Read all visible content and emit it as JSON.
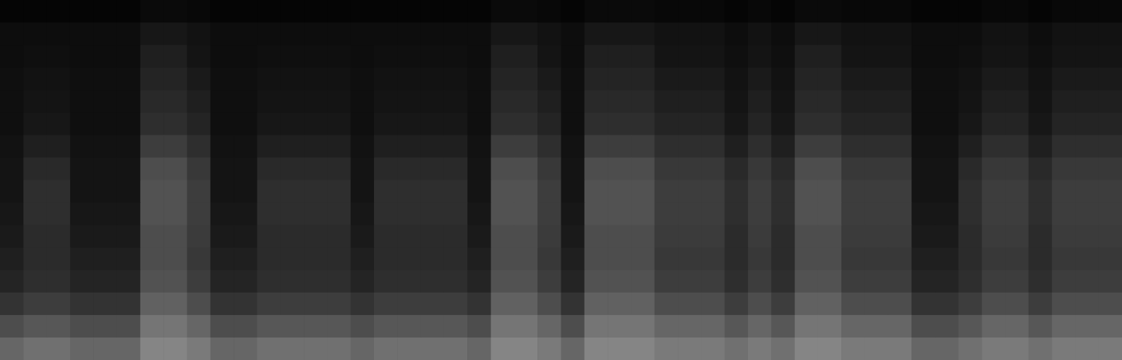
{
  "chart_data": {
    "type": "heatmap",
    "tick_labels": false,
    "color": "#ffffff",
    "zlim": [
      0,
      1
    ],
    "cells": [
      [
        0.02,
        0.02,
        0.02,
        0.02,
        0.02,
        0.02,
        0.04,
        0.04,
        0.03,
        0.02,
        0.02,
        0.02,
        0.02,
        0.02,
        0.02,
        0.02,
        0.02,
        0.02,
        0.02,
        0.02,
        0.02,
        0.04,
        0.04,
        0.03,
        0.02,
        0.04,
        0.04,
        0.04,
        0.03,
        0.03,
        0.03,
        0.02,
        0.03,
        0.02,
        0.04,
        0.04,
        0.03,
        0.03,
        0.03,
        0.02,
        0.02,
        0.02,
        0.03,
        0.03,
        0.02,
        0.03,
        0.03,
        0.03
      ],
      [
        0.05,
        0.05,
        0.05,
        0.05,
        0.05,
        0.05,
        0.09,
        0.09,
        0.07,
        0.05,
        0.05,
        0.05,
        0.05,
        0.05,
        0.05,
        0.05,
        0.05,
        0.05,
        0.05,
        0.05,
        0.05,
        0.09,
        0.09,
        0.07,
        0.05,
        0.09,
        0.09,
        0.09,
        0.07,
        0.07,
        0.07,
        0.05,
        0.07,
        0.05,
        0.09,
        0.09,
        0.07,
        0.07,
        0.07,
        0.05,
        0.05,
        0.05,
        0.07,
        0.07,
        0.05,
        0.07,
        0.07,
        0.07
      ],
      [
        0.05,
        0.06,
        0.06,
        0.05,
        0.05,
        0.05,
        0.12,
        0.12,
        0.08,
        0.05,
        0.05,
        0.06,
        0.06,
        0.06,
        0.06,
        0.05,
        0.06,
        0.06,
        0.06,
        0.06,
        0.05,
        0.12,
        0.12,
        0.08,
        0.05,
        0.12,
        0.12,
        0.12,
        0.08,
        0.08,
        0.08,
        0.06,
        0.08,
        0.06,
        0.12,
        0.12,
        0.08,
        0.08,
        0.08,
        0.05,
        0.05,
        0.06,
        0.08,
        0.08,
        0.06,
        0.08,
        0.08,
        0.08
      ],
      [
        0.06,
        0.07,
        0.07,
        0.06,
        0.06,
        0.06,
        0.14,
        0.14,
        0.1,
        0.06,
        0.06,
        0.07,
        0.07,
        0.07,
        0.07,
        0.06,
        0.07,
        0.07,
        0.07,
        0.07,
        0.06,
        0.14,
        0.14,
        0.1,
        0.06,
        0.14,
        0.14,
        0.14,
        0.1,
        0.1,
        0.1,
        0.07,
        0.1,
        0.07,
        0.14,
        0.14,
        0.1,
        0.1,
        0.1,
        0.06,
        0.06,
        0.07,
        0.1,
        0.1,
        0.07,
        0.1,
        0.1,
        0.1
      ],
      [
        0.06,
        0.08,
        0.08,
        0.06,
        0.06,
        0.06,
        0.16,
        0.16,
        0.12,
        0.06,
        0.06,
        0.08,
        0.08,
        0.08,
        0.08,
        0.06,
        0.08,
        0.08,
        0.08,
        0.08,
        0.06,
        0.16,
        0.16,
        0.12,
        0.06,
        0.16,
        0.16,
        0.16,
        0.12,
        0.12,
        0.12,
        0.08,
        0.12,
        0.08,
        0.16,
        0.16,
        0.12,
        0.12,
        0.12,
        0.06,
        0.06,
        0.08,
        0.12,
        0.12,
        0.08,
        0.12,
        0.12,
        0.12
      ],
      [
        0.06,
        0.09,
        0.09,
        0.06,
        0.06,
        0.06,
        0.18,
        0.18,
        0.14,
        0.06,
        0.06,
        0.09,
        0.09,
        0.09,
        0.09,
        0.06,
        0.09,
        0.09,
        0.09,
        0.09,
        0.06,
        0.18,
        0.18,
        0.14,
        0.06,
        0.18,
        0.18,
        0.18,
        0.14,
        0.14,
        0.14,
        0.09,
        0.14,
        0.09,
        0.18,
        0.18,
        0.14,
        0.14,
        0.14,
        0.06,
        0.06,
        0.09,
        0.14,
        0.14,
        0.09,
        0.14,
        0.14,
        0.14
      ],
      [
        0.07,
        0.12,
        0.12,
        0.07,
        0.07,
        0.07,
        0.24,
        0.24,
        0.18,
        0.07,
        0.07,
        0.12,
        0.12,
        0.12,
        0.12,
        0.07,
        0.12,
        0.12,
        0.12,
        0.12,
        0.07,
        0.24,
        0.24,
        0.18,
        0.07,
        0.24,
        0.24,
        0.24,
        0.18,
        0.18,
        0.18,
        0.12,
        0.18,
        0.12,
        0.24,
        0.24,
        0.18,
        0.18,
        0.18,
        0.07,
        0.07,
        0.12,
        0.18,
        0.18,
        0.12,
        0.18,
        0.18,
        0.18
      ],
      [
        0.08,
        0.16,
        0.16,
        0.08,
        0.08,
        0.08,
        0.3,
        0.3,
        0.22,
        0.08,
        0.08,
        0.16,
        0.16,
        0.16,
        0.16,
        0.08,
        0.16,
        0.16,
        0.16,
        0.16,
        0.08,
        0.3,
        0.3,
        0.22,
        0.08,
        0.3,
        0.3,
        0.3,
        0.22,
        0.22,
        0.22,
        0.16,
        0.22,
        0.16,
        0.3,
        0.3,
        0.22,
        0.22,
        0.22,
        0.08,
        0.08,
        0.16,
        0.22,
        0.22,
        0.16,
        0.22,
        0.22,
        0.22
      ],
      [
        0.08,
        0.18,
        0.18,
        0.08,
        0.08,
        0.08,
        0.32,
        0.32,
        0.24,
        0.08,
        0.08,
        0.18,
        0.18,
        0.18,
        0.18,
        0.08,
        0.18,
        0.18,
        0.18,
        0.18,
        0.08,
        0.32,
        0.32,
        0.24,
        0.08,
        0.32,
        0.32,
        0.32,
        0.24,
        0.24,
        0.24,
        0.18,
        0.24,
        0.18,
        0.32,
        0.32,
        0.24,
        0.24,
        0.24,
        0.08,
        0.08,
        0.18,
        0.24,
        0.24,
        0.18,
        0.24,
        0.24,
        0.24
      ],
      [
        0.09,
        0.18,
        0.18,
        0.09,
        0.09,
        0.09,
        0.32,
        0.32,
        0.24,
        0.09,
        0.09,
        0.18,
        0.18,
        0.18,
        0.18,
        0.09,
        0.18,
        0.18,
        0.18,
        0.18,
        0.09,
        0.32,
        0.32,
        0.24,
        0.09,
        0.32,
        0.32,
        0.32,
        0.24,
        0.24,
        0.24,
        0.18,
        0.24,
        0.18,
        0.32,
        0.32,
        0.24,
        0.24,
        0.24,
        0.09,
        0.09,
        0.18,
        0.24,
        0.24,
        0.18,
        0.24,
        0.24,
        0.24
      ],
      [
        0.1,
        0.17,
        0.17,
        0.1,
        0.1,
        0.1,
        0.3,
        0.3,
        0.23,
        0.1,
        0.1,
        0.17,
        0.17,
        0.17,
        0.17,
        0.1,
        0.17,
        0.17,
        0.17,
        0.17,
        0.1,
        0.3,
        0.3,
        0.23,
        0.1,
        0.3,
        0.3,
        0.3,
        0.23,
        0.23,
        0.23,
        0.17,
        0.23,
        0.17,
        0.3,
        0.3,
        0.23,
        0.23,
        0.23,
        0.1,
        0.1,
        0.17,
        0.23,
        0.23,
        0.17,
        0.23,
        0.23,
        0.23
      ],
      [
        0.12,
        0.17,
        0.17,
        0.12,
        0.12,
        0.12,
        0.3,
        0.3,
        0.22,
        0.12,
        0.12,
        0.17,
        0.17,
        0.17,
        0.17,
        0.12,
        0.17,
        0.17,
        0.17,
        0.17,
        0.12,
        0.3,
        0.3,
        0.22,
        0.12,
        0.3,
        0.3,
        0.3,
        0.22,
        0.22,
        0.22,
        0.17,
        0.22,
        0.17,
        0.3,
        0.3,
        0.22,
        0.22,
        0.22,
        0.12,
        0.12,
        0.17,
        0.22,
        0.22,
        0.17,
        0.22,
        0.22,
        0.22
      ],
      [
        0.14,
        0.18,
        0.18,
        0.14,
        0.14,
        0.14,
        0.32,
        0.32,
        0.24,
        0.14,
        0.14,
        0.18,
        0.18,
        0.18,
        0.18,
        0.14,
        0.18,
        0.18,
        0.18,
        0.18,
        0.14,
        0.32,
        0.32,
        0.24,
        0.14,
        0.32,
        0.32,
        0.32,
        0.24,
        0.24,
        0.24,
        0.18,
        0.24,
        0.18,
        0.32,
        0.32,
        0.24,
        0.24,
        0.24,
        0.14,
        0.14,
        0.18,
        0.24,
        0.24,
        0.18,
        0.24,
        0.24,
        0.24
      ],
      [
        0.2,
        0.24,
        0.24,
        0.2,
        0.2,
        0.2,
        0.38,
        0.38,
        0.3,
        0.2,
        0.2,
        0.24,
        0.24,
        0.24,
        0.24,
        0.2,
        0.24,
        0.24,
        0.24,
        0.24,
        0.2,
        0.38,
        0.38,
        0.3,
        0.2,
        0.38,
        0.38,
        0.38,
        0.3,
        0.3,
        0.3,
        0.24,
        0.3,
        0.24,
        0.38,
        0.38,
        0.3,
        0.3,
        0.3,
        0.2,
        0.2,
        0.24,
        0.3,
        0.3,
        0.24,
        0.3,
        0.3,
        0.3
      ],
      [
        0.3,
        0.34,
        0.34,
        0.3,
        0.3,
        0.3,
        0.46,
        0.46,
        0.4,
        0.3,
        0.3,
        0.34,
        0.34,
        0.34,
        0.34,
        0.3,
        0.34,
        0.34,
        0.34,
        0.34,
        0.3,
        0.46,
        0.46,
        0.4,
        0.3,
        0.46,
        0.46,
        0.46,
        0.4,
        0.4,
        0.4,
        0.34,
        0.4,
        0.34,
        0.46,
        0.46,
        0.4,
        0.4,
        0.4,
        0.3,
        0.3,
        0.34,
        0.4,
        0.4,
        0.34,
        0.4,
        0.4,
        0.4
      ],
      [
        0.4,
        0.44,
        0.44,
        0.4,
        0.4,
        0.4,
        0.52,
        0.52,
        0.48,
        0.4,
        0.4,
        0.44,
        0.44,
        0.44,
        0.44,
        0.4,
        0.44,
        0.44,
        0.44,
        0.44,
        0.4,
        0.52,
        0.52,
        0.48,
        0.4,
        0.52,
        0.52,
        0.52,
        0.48,
        0.48,
        0.48,
        0.44,
        0.48,
        0.44,
        0.52,
        0.52,
        0.48,
        0.48,
        0.48,
        0.4,
        0.4,
        0.44,
        0.48,
        0.48,
        0.44,
        0.48,
        0.48,
        0.48
      ]
    ]
  }
}
